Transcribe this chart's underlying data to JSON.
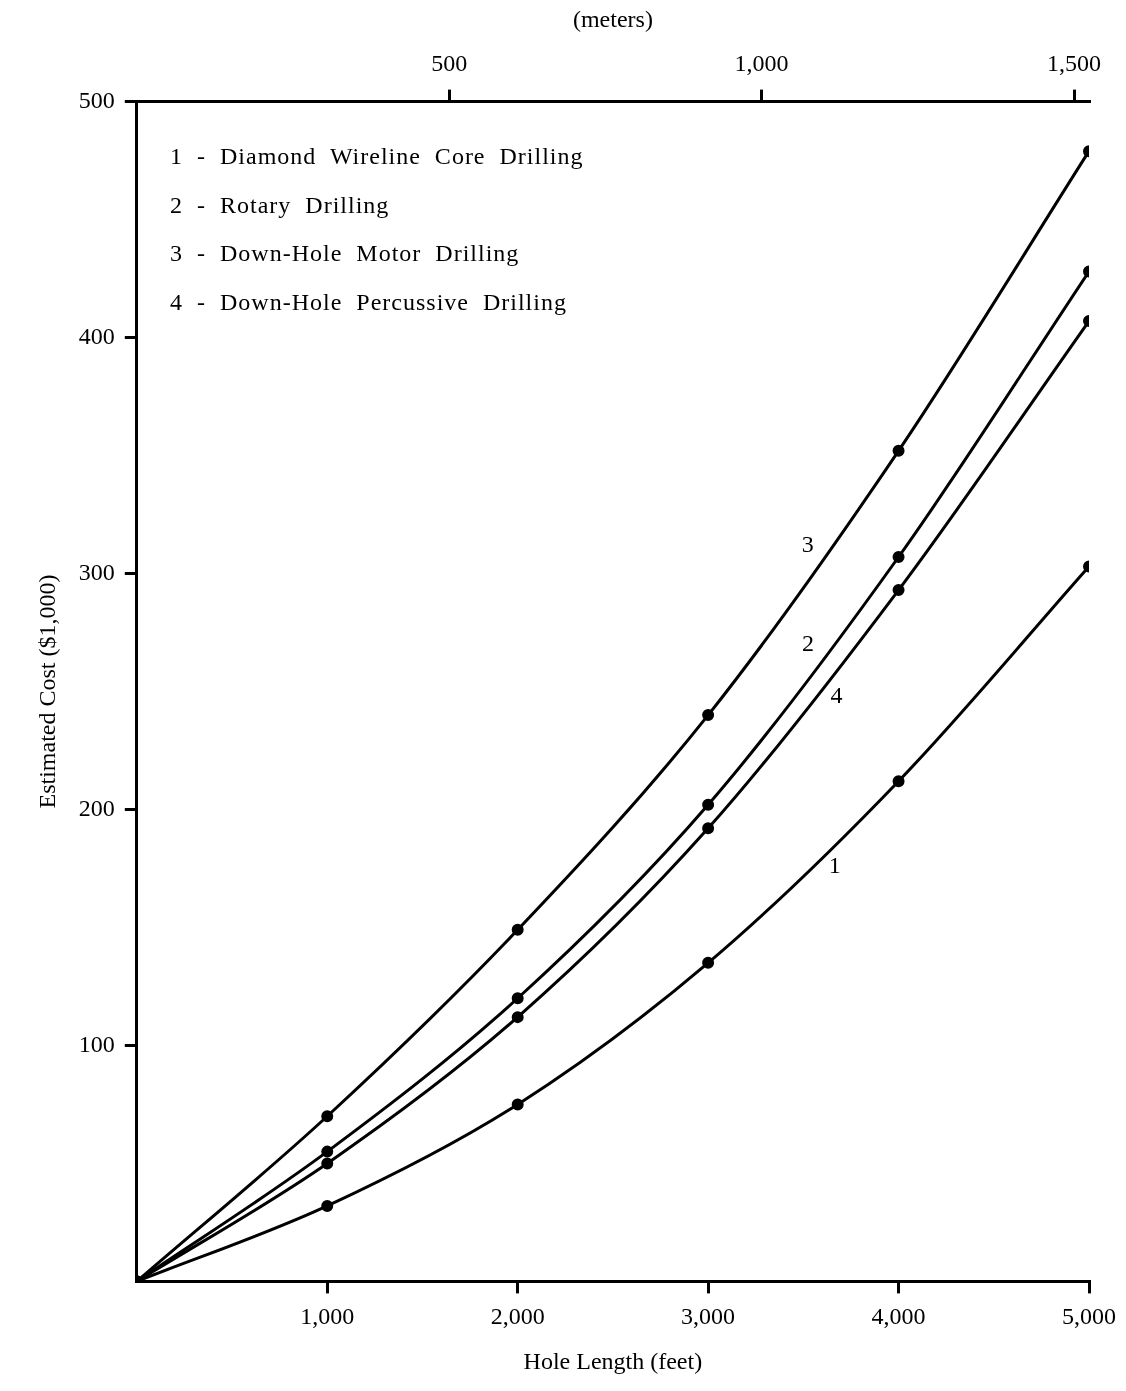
{
  "chart_data": {
    "type": "line",
    "xlabel": "Hole Length (feet)",
    "ylabel": "Estimated Cost ($1,000)",
    "x2label": "(meters)",
    "x": [
      0,
      1000,
      2000,
      3000,
      4000,
      5000
    ],
    "series": [
      {
        "name": "1",
        "color": "#000000",
        "values": [
          0,
          32,
          75,
          135,
          212,
          303
        ]
      },
      {
        "name": "2",
        "color": "#000000",
        "values": [
          0,
          55,
          120,
          202,
          307,
          428
        ]
      },
      {
        "name": "3",
        "color": "#000000",
        "values": [
          0,
          70,
          149,
          240,
          352,
          479
        ]
      },
      {
        "name": "4",
        "color": "#000000",
        "values": [
          0,
          50,
          112,
          192,
          293,
          407
        ]
      }
    ],
    "xlim": [
      0,
      5000
    ],
    "xticks": [
      {
        "value": 1000,
        "label": "1,000"
      },
      {
        "value": 2000,
        "label": "2,000"
      },
      {
        "value": 3000,
        "label": "3,000"
      },
      {
        "value": 4000,
        "label": "4,000"
      },
      {
        "value": 5000,
        "label": "5,000"
      }
    ],
    "x2lim": [
      0,
      1524
    ],
    "x2ticks": [
      500,
      {
        "value": 1000,
        "label": "1,000"
      },
      {
        "value": 1500,
        "label": "1,500"
      }
    ],
    "ylim": [
      0,
      500
    ],
    "yticks": [
      100,
      200,
      300,
      400,
      500
    ],
    "grid": false,
    "legend": false,
    "marker": "circle",
    "line_style": "solid",
    "annotations": [
      "1  -  Diamond  Wireline  Core  Drilling",
      "2  -  Rotary  Drilling",
      "3  -  Down-Hole  Motor  Drilling",
      "4  -  Down-Hole  Percussive  Drilling"
    ]
  }
}
